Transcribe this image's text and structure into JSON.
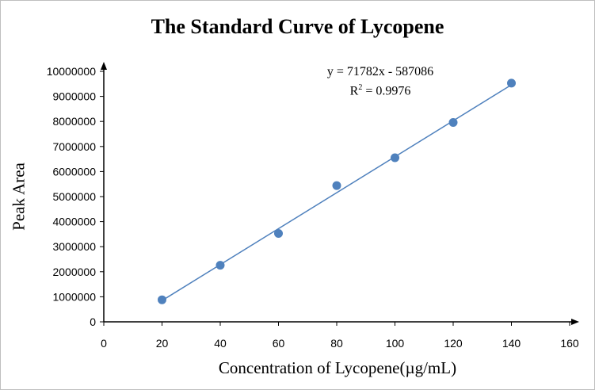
{
  "chart_data": {
    "type": "scatter",
    "title": "The Standard Curve of Lycopene",
    "xlabel": "Concentration of Lycopene(µg/mL)",
    "ylabel": "Peak Area",
    "xlim": [
      0,
      160
    ],
    "ylim": [
      0,
      10000000
    ],
    "x_ticks": [
      "0",
      "20",
      "40",
      "60",
      "80",
      "100",
      "120",
      "140",
      "160"
    ],
    "y_ticks": [
      "0",
      "1000000",
      "2000000",
      "3000000",
      "4000000",
      "5000000",
      "6000000",
      "7000000",
      "8000000",
      "9000000",
      "10000000"
    ],
    "grid": false,
    "series": [
      {
        "x": [
          20,
          40,
          60,
          80,
          100,
          120,
          140
        ],
        "y": [
          880000,
          2260000,
          3530000,
          5440000,
          6550000,
          7960000,
          9530000
        ],
        "color": "#4f81bd"
      }
    ],
    "trendline": {
      "equation": "y = 71782x - 587086",
      "r2_prefix": "R",
      "r2_sup": "2",
      "r2_value": " = 0.9976",
      "slope": 71782,
      "intercept": -587086,
      "x_range": [
        20,
        140
      ],
      "color": "#4f81bd"
    }
  }
}
